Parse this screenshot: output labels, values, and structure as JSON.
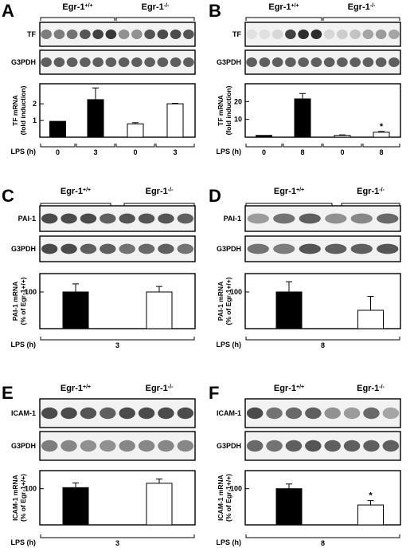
{
  "panels": [
    {
      "letter": "A",
      "groups": [
        "Egr-1",
        "Egr-1"
      ],
      "group_sups": [
        "+/+",
        "-/-"
      ],
      "blots": [
        {
          "label": "TF",
          "lanes": [
            0.55,
            0.55,
            0.6,
            0.75,
            0.85,
            0.9,
            0.45,
            0.45,
            0.75,
            0.8,
            0.8,
            0.75
          ]
        },
        {
          "label": "G3PDH",
          "lanes": [
            0.7,
            0.7,
            0.7,
            0.7,
            0.7,
            0.7,
            0.7,
            0.7,
            0.7,
            0.7,
            0.7,
            0.7
          ]
        }
      ],
      "lps_label": "LPS (h)",
      "lps_values": [
        "0",
        "3",
        "0",
        "3"
      ],
      "star_bar": null,
      "chart_data": {
        "type": "bar",
        "categories": [
          "Egr-1+/+ 0 h",
          "Egr-1+/+ 3 h",
          "Egr-1-/- 0 h",
          "Egr-1-/- 3 h"
        ],
        "values": [
          0.95,
          2.25,
          0.8,
          2.0
        ],
        "errors": [
          0,
          0.7,
          0.07,
          0.03
        ],
        "fills": [
          "#000000",
          "#000000",
          "#ffffff",
          "#ffffff"
        ],
        "ylabel": [
          "TF mRNA",
          "(fold induction)"
        ],
        "yticks": [
          "1",
          "2"
        ],
        "ytick_values": [
          1,
          2
        ],
        "ylim": [
          0,
          3.2
        ]
      }
    },
    {
      "letter": "B",
      "groups": [
        "Egr-1",
        "Egr-1"
      ],
      "group_sups": [
        "+/+",
        "-/-"
      ],
      "blots": [
        {
          "label": "TF",
          "lanes": [
            0.05,
            0.05,
            0.1,
            0.85,
            0.95,
            0.95,
            0.1,
            0.15,
            0.2,
            0.35,
            0.4,
            0.35
          ]
        },
        {
          "label": "G3PDH",
          "lanes": [
            0.7,
            0.7,
            0.7,
            0.7,
            0.7,
            0.7,
            0.7,
            0.7,
            0.7,
            0.7,
            0.7,
            0.7
          ]
        }
      ],
      "lps_label": "LPS (h)",
      "lps_values": [
        "0",
        "8",
        "0",
        "8"
      ],
      "star_bar": 3,
      "star_text": "*",
      "chart_data": {
        "type": "bar",
        "categories": [
          "Egr-1+/+ 0 h",
          "Egr-1+/+ 8 h",
          "Egr-1-/- 0 h",
          "Egr-1-/- 8 h"
        ],
        "values": [
          1.0,
          21.5,
          1.0,
          2.8
        ],
        "errors": [
          0,
          3.0,
          0.3,
          0.4
        ],
        "fills": [
          "#000000",
          "#000000",
          "#ffffff",
          "#ffffff"
        ],
        "ylabel": [
          "TF mRNA",
          "(fold induction)"
        ],
        "yticks": [
          "10",
          "20"
        ],
        "ytick_values": [
          10,
          20
        ],
        "ylim": [
          0,
          30
        ]
      }
    },
    {
      "letter": "C",
      "groups": [
        "Egr-1",
        "Egr-1"
      ],
      "group_sups": [
        "+/+",
        "-/-"
      ],
      "blots": [
        {
          "label": "PAI-1",
          "lanes": [
            0.8,
            0.8,
            0.8,
            0.7,
            0.75,
            0.75,
            0.75,
            0.7
          ]
        },
        {
          "label": "G3PDH",
          "lanes": [
            0.8,
            0.8,
            0.7,
            0.7,
            0.6,
            0.65,
            0.7,
            0.6
          ]
        }
      ],
      "lps_label": "LPS (h)",
      "lps_values": [
        "3"
      ],
      "star_bar": null,
      "chart_data": {
        "type": "bar",
        "categories": [
          "Egr-1+/+",
          "Egr-1-/-"
        ],
        "values": [
          100,
          100
        ],
        "errors": [
          22,
          15
        ],
        "fills": [
          "#000000",
          "#ffffff"
        ],
        "ylabel": [
          "PAI-1 mRNA",
          "(% of Egr-1+/+)"
        ],
        "yticks": [
          "100"
        ],
        "ytick_values": [
          100
        ],
        "ylim": [
          0,
          150
        ]
      }
    },
    {
      "letter": "D",
      "groups": [
        "Egr-1",
        "Egr-1"
      ],
      "group_sups": [
        "+/+",
        "-/-"
      ],
      "blots": [
        {
          "label": "PAI-1",
          "lanes": [
            0.4,
            0.6,
            0.7,
            0.45,
            0.5,
            0.65
          ]
        },
        {
          "label": "G3PDH",
          "lanes": [
            0.6,
            0.55,
            0.75,
            0.7,
            0.7,
            0.75
          ]
        }
      ],
      "lps_label": "LPS (h)",
      "lps_values": [
        "8"
      ],
      "star_bar": null,
      "chart_data": {
        "type": "bar",
        "categories": [
          "Egr-1+/+",
          "Egr-1-/-"
        ],
        "values": [
          100,
          50
        ],
        "errors": [
          28,
          38
        ],
        "fills": [
          "#000000",
          "#ffffff"
        ],
        "ylabel": [
          "PAI-1 mRNA",
          "(% of Egr-1+/+)"
        ],
        "yticks": [
          "100"
        ],
        "ytick_values": [
          100
        ],
        "ylim": [
          0,
          150
        ]
      }
    },
    {
      "letter": "E",
      "groups": [
        "Egr-1",
        "Egr-1"
      ],
      "group_sups": [
        "+/+",
        "-/-"
      ],
      "blots": [
        {
          "label": "ICAM-1",
          "lanes": [
            0.8,
            0.8,
            0.75,
            0.7,
            0.8,
            0.8,
            0.8,
            0.8
          ]
        },
        {
          "label": "G3PDH",
          "lanes": [
            0.55,
            0.5,
            0.45,
            0.45,
            0.5,
            0.5,
            0.5,
            0.5
          ]
        }
      ],
      "lps_label": "LPS (h)",
      "lps_values": [
        "3"
      ],
      "star_bar": null,
      "chart_data": {
        "type": "bar",
        "categories": [
          "Egr-1+/+",
          "Egr-1-/-"
        ],
        "values": [
          103,
          115
        ],
        "errors": [
          13,
          12
        ],
        "fills": [
          "#000000",
          "#ffffff"
        ],
        "ylabel": [
          "ICAM-1 mRNA",
          "(% of Egr-1+/+)"
        ],
        "yticks": [
          "100"
        ],
        "ytick_values": [
          100
        ],
        "ylim": [
          0,
          150
        ]
      }
    },
    {
      "letter": "F",
      "groups": [
        "Egr-1",
        "Egr-1"
      ],
      "group_sups": [
        "+/+",
        "-/-"
      ],
      "blots": [
        {
          "label": "ICAM-1",
          "lanes": [
            0.8,
            0.6,
            0.65,
            0.7,
            0.45,
            0.4,
            0.65,
            0.35
          ]
        },
        {
          "label": "G3PDH",
          "lanes": [
            0.65,
            0.6,
            0.7,
            0.75,
            0.7,
            0.7,
            0.7,
            0.7
          ]
        }
      ],
      "lps_label": "LPS (h)",
      "lps_values": [
        "8"
      ],
      "star_bar": 1,
      "star_text": "*",
      "chart_data": {
        "type": "bar",
        "categories": [
          "Egr-1+/+",
          "Egr-1-/-"
        ],
        "values": [
          100,
          55
        ],
        "errors": [
          13,
          12
        ],
        "fills": [
          "#000000",
          "#ffffff"
        ],
        "ylabel": [
          "ICAM-1 mRNA",
          "(% of Egr-1+/+)"
        ],
        "yticks": [
          "100"
        ],
        "ytick_values": [
          100
        ],
        "ylim": [
          0,
          150
        ]
      }
    }
  ]
}
